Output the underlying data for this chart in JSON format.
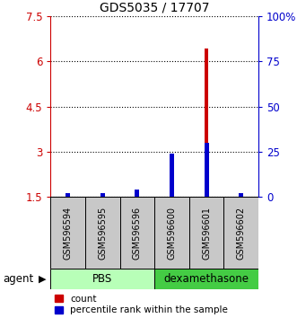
{
  "title": "GDS5035 / 17707",
  "samples": [
    "GSM596594",
    "GSM596595",
    "GSM596596",
    "GSM596600",
    "GSM596601",
    "GSM596602"
  ],
  "count_values": [
    1.52,
    1.52,
    1.62,
    2.88,
    6.42,
    1.52
  ],
  "percentile_values": [
    2.0,
    2.0,
    4.0,
    24.0,
    30.0,
    2.0
  ],
  "ylim_left": [
    1.5,
    7.5
  ],
  "ylim_right": [
    0,
    100
  ],
  "left_ticks": [
    1.5,
    3.0,
    4.5,
    6.0,
    7.5
  ],
  "left_tick_labels": [
    "1.5",
    "3",
    "4.5",
    "6",
    "7.5"
  ],
  "right_ticks": [
    0,
    25,
    50,
    75,
    100
  ],
  "right_tick_labels": [
    "0",
    "25",
    "50",
    "75",
    "100%"
  ],
  "count_color": "#cc0000",
  "percentile_color": "#0000cc",
  "group_labels": [
    "PBS",
    "dexamethasone"
  ],
  "pbs_color": "#b8ffb8",
  "dex_color": "#44cc44",
  "sample_box_color": "#c8c8c8",
  "agent_label": "agent",
  "legend_count_label": "count",
  "legend_percentile_label": "percentile rank within the sample"
}
